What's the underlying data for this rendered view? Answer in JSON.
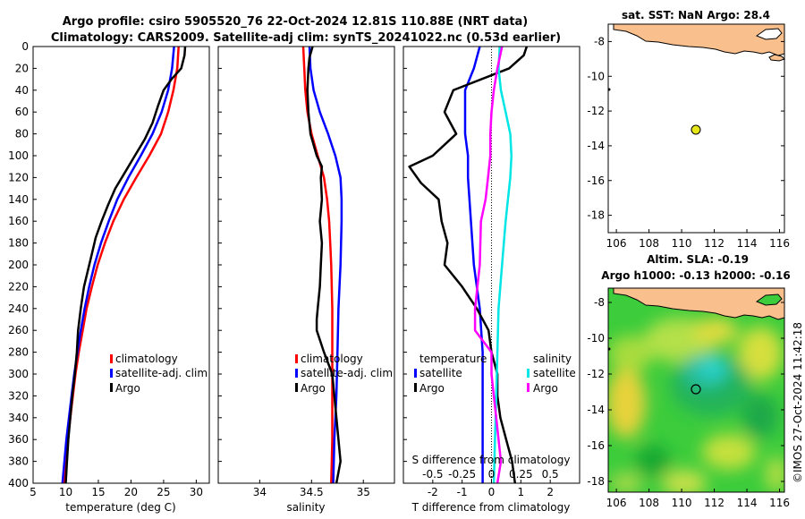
{
  "header": {
    "title_line1": "Argo profile: csiro 5905520_76 22-Oct-2024 12.81S 110.88E (NRT data)",
    "title_line2": "Climatology: CARS2009. Satellite-adj clim: synTS_20241022.nc (0.53d earlier)"
  },
  "colors": {
    "climatology": "#ff0000",
    "satellite": "#0000ff",
    "argo": "#000000",
    "sat_salinity": "#00e5e5",
    "argo_salinity": "#ff00ff",
    "land": "#f9c08e"
  },
  "chart_data": [
    {
      "id": "temperature",
      "type": "line",
      "xlabel": "temperature (deg C)",
      "ylabel": "",
      "xlim": [
        5,
        32
      ],
      "ylim": [
        400,
        0
      ],
      "xticks": [
        5,
        10,
        15,
        20,
        25,
        30
      ],
      "yticks": [
        0,
        20,
        40,
        60,
        80,
        100,
        120,
        140,
        160,
        180,
        200,
        220,
        240,
        260,
        280,
        300,
        320,
        340,
        360,
        380,
        400
      ],
      "legend": [
        "climatology",
        "satellite-adj. clim",
        "Argo"
      ],
      "series": [
        {
          "name": "climatology",
          "color": "#ff0000",
          "depth": [
            0,
            20,
            40,
            60,
            80,
            100,
            120,
            140,
            160,
            180,
            200,
            220,
            240,
            260,
            280,
            300,
            320,
            340,
            360,
            380,
            400
          ],
          "values": [
            27.3,
            27.1,
            26.5,
            25.7,
            24.6,
            22.8,
            20.8,
            18.9,
            17.3,
            16.0,
            14.9,
            14.0,
            13.2,
            12.6,
            12.0,
            11.5,
            11.1,
            10.7,
            10.3,
            10.0,
            9.7
          ]
        },
        {
          "name": "satellite-adj. clim",
          "color": "#0000ff",
          "depth": [
            0,
            20,
            40,
            60,
            80,
            100,
            120,
            140,
            160,
            180,
            200,
            220,
            240,
            260,
            280,
            300,
            320,
            340,
            360,
            380,
            400
          ],
          "values": [
            26.6,
            26.3,
            25.7,
            24.7,
            23.3,
            21.5,
            19.6,
            17.9,
            16.6,
            15.4,
            14.4,
            13.6,
            12.9,
            12.3,
            11.8,
            11.3,
            10.9,
            10.5,
            10.1,
            9.8,
            9.5
          ]
        },
        {
          "name": "Argo",
          "color": "#000000",
          "depth": [
            0,
            8,
            20,
            30,
            40,
            55,
            70,
            85,
            100,
            115,
            130,
            145,
            160,
            175,
            190,
            205,
            220,
            240,
            260,
            280,
            300,
            320,
            340,
            360,
            380,
            390,
            400
          ],
          "values": [
            28.3,
            28.2,
            27.7,
            26.2,
            25.0,
            24.1,
            23.3,
            22.1,
            20.6,
            19.1,
            17.6,
            16.5,
            15.5,
            14.6,
            14.0,
            13.4,
            12.8,
            12.3,
            11.9,
            11.7,
            11.4,
            11.0,
            10.7,
            10.4,
            10.2,
            10.1,
            10.0
          ]
        }
      ]
    },
    {
      "id": "salinity",
      "type": "line",
      "xlabel": "salinity",
      "xlim": [
        33.6,
        35.3
      ],
      "ylim": [
        400,
        0
      ],
      "xticks": [
        34,
        34.5,
        35
      ],
      "legend": [
        "climatology",
        "satellite-adj. clim",
        "Argo"
      ],
      "series": [
        {
          "name": "climatology",
          "color": "#ff0000",
          "depth": [
            0,
            20,
            40,
            60,
            80,
            100,
            120,
            140,
            160,
            180,
            200,
            240,
            280,
            320,
            360,
            400
          ],
          "values": [
            34.42,
            34.43,
            34.44,
            34.46,
            34.5,
            34.56,
            34.62,
            34.65,
            34.67,
            34.68,
            34.69,
            34.7,
            34.7,
            34.7,
            34.7,
            34.69
          ]
        },
        {
          "name": "satellite-adj. clim",
          "color": "#0000ff",
          "depth": [
            0,
            20,
            40,
            60,
            80,
            100,
            120,
            140,
            160,
            200,
            240,
            280,
            320,
            360,
            400
          ],
          "values": [
            34.48,
            34.49,
            34.52,
            34.58,
            34.66,
            34.73,
            34.78,
            34.79,
            34.79,
            34.78,
            34.76,
            34.75,
            34.74,
            34.72,
            34.71
          ]
        },
        {
          "name": "Argo",
          "color": "#000000",
          "depth": [
            0,
            10,
            20,
            40,
            60,
            80,
            100,
            110,
            120,
            140,
            160,
            180,
            200,
            220,
            240,
            250,
            260,
            280,
            300,
            320,
            340,
            360,
            380,
            390,
            400
          ],
          "values": [
            34.51,
            34.48,
            34.47,
            34.46,
            34.47,
            34.49,
            34.55,
            34.6,
            34.59,
            34.6,
            34.58,
            34.6,
            34.59,
            34.58,
            34.56,
            34.55,
            34.55,
            34.62,
            34.7,
            34.72,
            34.74,
            34.76,
            34.78,
            34.76,
            34.74
          ]
        }
      ]
    },
    {
      "id": "differences",
      "type": "line",
      "xlabel": "T difference from climatology",
      "top_xlabel": "S difference from climatology",
      "xlim": [
        -3,
        3
      ],
      "ylim": [
        400,
        0
      ],
      "xticks": [
        -2,
        -1,
        0,
        1,
        2
      ],
      "top_xticks": [
        "-0.5",
        "-0.25",
        "0",
        "0.25",
        "0.5"
      ],
      "legend_left_title": "temperature",
      "legend_right_title": "salinity",
      "legend": [
        "satellite",
        "Argo",
        "satellite",
        "Argo"
      ],
      "series": [
        {
          "name": "T satellite",
          "color": "#0000ff",
          "depth": [
            0,
            20,
            40,
            60,
            80,
            100,
            120,
            160,
            200,
            240,
            280,
            320,
            360,
            400
          ],
          "values": [
            -0.4,
            -0.6,
            -0.9,
            -0.9,
            -0.9,
            -0.8,
            -0.8,
            -0.7,
            -0.6,
            -0.4,
            -0.3,
            -0.3,
            -0.3,
            -0.3
          ]
        },
        {
          "name": "T Argo",
          "color": "#000000",
          "depth": [
            0,
            8,
            20,
            40,
            60,
            80,
            100,
            110,
            125,
            140,
            160,
            180,
            200,
            220,
            240,
            260,
            280,
            300,
            320,
            340,
            360,
            380,
            400
          ],
          "values": [
            1.2,
            1.1,
            0.6,
            -1.3,
            -1.6,
            -1.2,
            -2.0,
            -2.8,
            -2.4,
            -1.8,
            -1.7,
            -1.5,
            -1.6,
            -1.0,
            -0.5,
            -0.1,
            0.0,
            0.2,
            0.2,
            0.3,
            0.5,
            0.7,
            0.8
          ]
        },
        {
          "name": "S satellite",
          "color": "#00e5e5",
          "depth": [
            0,
            20,
            40,
            60,
            80,
            100,
            120,
            140,
            160,
            200,
            240,
            280,
            320,
            360,
            400
          ],
          "values": [
            0.07,
            0.06,
            0.08,
            0.12,
            0.16,
            0.17,
            0.16,
            0.14,
            0.12,
            0.09,
            0.06,
            0.05,
            0.04,
            0.03,
            0.02
          ]
        },
        {
          "name": "S Argo",
          "color": "#ff00ff",
          "depth": [
            0,
            20,
            40,
            60,
            80,
            100,
            120,
            140,
            160,
            200,
            240,
            260,
            280,
            300,
            320,
            340,
            360,
            380,
            400
          ],
          "values": [
            0.09,
            0.05,
            0.02,
            0.0,
            -0.01,
            -0.01,
            -0.03,
            -0.05,
            -0.09,
            -0.1,
            -0.14,
            -0.14,
            0.0,
            0.0,
            0.02,
            0.04,
            0.06,
            0.08,
            0.05
          ]
        }
      ]
    }
  ],
  "ylabel_ticks": [
    "0",
    "20",
    "40",
    "60",
    "80",
    "100",
    "120",
    "140",
    "160",
    "180",
    "200",
    "220",
    "240",
    "260",
    "280",
    "300",
    "320",
    "340",
    "360",
    "380",
    "400"
  ],
  "maps": {
    "sst": {
      "title": "sat. SST: NaN Argo: 28.4",
      "yticks": [
        "-8",
        "-10",
        "-12",
        "-14",
        "-16",
        "-18"
      ],
      "xticks": [
        "106",
        "108",
        "110",
        "112",
        "114",
        "116"
      ],
      "argo_marker": {
        "lon": 110.88,
        "lat": -12.81
      }
    },
    "sla": {
      "title_line1": "Altim. SLA: -0.19",
      "title_line2": "Argo h1000: -0.13 h2000: -0.16",
      "yticks": [
        "-8",
        "-10",
        "-12",
        "-14",
        "-16",
        "-18"
      ],
      "xticks": [
        "106",
        "108",
        "110",
        "112",
        "114",
        "116"
      ],
      "argo_marker": {
        "lon": 110.88,
        "lat": -12.81
      }
    }
  },
  "watermark": "©IMOS 27-Oct-2024 11:42:18"
}
